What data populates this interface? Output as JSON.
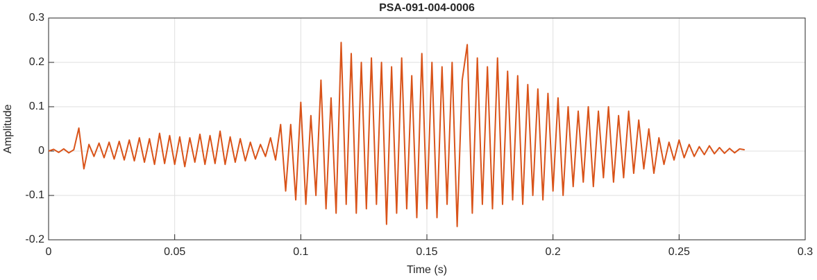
{
  "chart_data": {
    "type": "line",
    "title": "PSA-091-004-0006",
    "xlabel": "Time (s)",
    "ylabel": "Amplitude",
    "x": [
      0,
      0.002,
      0.004,
      0.006,
      0.008,
      0.01,
      0.012,
      0.014,
      0.016,
      0.018,
      0.02,
      0.022,
      0.024,
      0.026,
      0.028,
      0.03,
      0.032,
      0.034,
      0.036,
      0.038,
      0.04,
      0.042,
      0.044,
      0.046,
      0.048,
      0.05,
      0.052,
      0.054,
      0.056,
      0.058,
      0.06,
      0.062,
      0.064,
      0.066,
      0.068,
      0.07,
      0.072,
      0.074,
      0.076,
      0.078,
      0.08,
      0.082,
      0.084,
      0.086,
      0.088,
      0.09,
      0.092,
      0.094,
      0.096,
      0.098,
      0.1,
      0.102,
      0.104,
      0.106,
      0.108,
      0.11,
      0.112,
      0.114,
      0.116,
      0.118,
      0.12,
      0.122,
      0.124,
      0.126,
      0.128,
      0.13,
      0.132,
      0.134,
      0.136,
      0.138,
      0.14,
      0.142,
      0.144,
      0.146,
      0.148,
      0.15,
      0.152,
      0.154,
      0.156,
      0.158,
      0.16,
      0.162,
      0.164,
      0.166,
      0.168,
      0.17,
      0.172,
      0.174,
      0.176,
      0.178,
      0.18,
      0.182,
      0.184,
      0.186,
      0.188,
      0.19,
      0.192,
      0.194,
      0.196,
      0.198,
      0.2,
      0.202,
      0.204,
      0.206,
      0.208,
      0.21,
      0.212,
      0.214,
      0.216,
      0.218,
      0.22,
      0.222,
      0.224,
      0.226,
      0.228,
      0.23,
      0.232,
      0.234,
      0.236,
      0.238,
      0.24,
      0.242,
      0.244,
      0.246,
      0.248,
      0.25,
      0.252,
      0.254,
      0.256,
      0.258,
      0.26,
      0.262,
      0.264,
      0.266,
      0.268,
      0.27,
      0.272,
      0.274,
      0.276
    ],
    "series": [
      {
        "color": "#d95319",
        "values": [
          0,
          0.004,
          -0.003,
          0.005,
          -0.004,
          0.003,
          0.052,
          -0.04,
          0.015,
          -0.012,
          0.018,
          -0.015,
          0.02,
          -0.018,
          0.022,
          -0.02,
          0.025,
          -0.022,
          0.03,
          -0.025,
          0.028,
          -0.03,
          0.04,
          -0.028,
          0.035,
          -0.03,
          0.032,
          -0.035,
          0.03,
          -0.025,
          0.038,
          -0.03,
          0.035,
          -0.028,
          0.045,
          -0.03,
          0.032,
          -0.025,
          0.028,
          -0.022,
          0.02,
          -0.018,
          0.015,
          -0.012,
          0.03,
          -0.02,
          0.06,
          -0.09,
          0.06,
          -0.11,
          0.11,
          -0.12,
          0.08,
          -0.1,
          0.16,
          -0.13,
          0.12,
          -0.14,
          0.245,
          -0.12,
          0.22,
          -0.14,
          0.2,
          -0.13,
          0.21,
          -0.12,
          0.2,
          -0.165,
          0.19,
          -0.14,
          0.21,
          -0.13,
          0.17,
          -0.15,
          0.22,
          -0.13,
          0.2,
          -0.15,
          0.19,
          -0.12,
          0.2,
          -0.17,
          0.16,
          0.24,
          -0.14,
          0.21,
          -0.12,
          0.19,
          -0.13,
          0.21,
          -0.12,
          0.18,
          -0.11,
          0.17,
          -0.12,
          0.15,
          -0.1,
          0.14,
          -0.11,
          0.13,
          -0.09,
          0.12,
          -0.1,
          0.1,
          -0.08,
          0.09,
          -0.07,
          0.1,
          -0.08,
          0.09,
          -0.06,
          0.1,
          -0.07,
          0.08,
          -0.06,
          0.09,
          -0.05,
          0.07,
          -0.04,
          0.05,
          -0.05,
          0.03,
          -0.03,
          0.02,
          -0.02,
          0.025,
          -0.015,
          0.015,
          -0.012,
          0.01,
          -0.008,
          0.012,
          -0.006,
          0.008,
          -0.005,
          0.006,
          -0.004,
          0.005,
          0.003
        ]
      }
    ],
    "xlim": [
      0,
      0.3
    ],
    "xticks": [
      0,
      0.05,
      0.1,
      0.15,
      0.2,
      0.25,
      0.3
    ],
    "ylim": [
      -0.2,
      0.3
    ],
    "yticks": [
      -0.2,
      -0.1,
      0,
      0.1,
      0.2,
      0.3
    ],
    "grid": true
  }
}
